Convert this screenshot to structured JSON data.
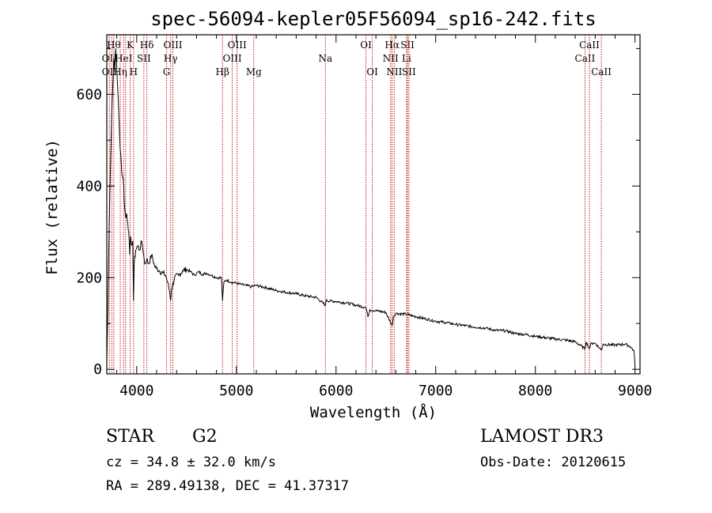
{
  "chart_data": {
    "type": "line",
    "title": "spec-56094-kepler05F56094_sp16-242.fits",
    "xlabel": "Wavelength (Å)",
    "ylabel": "Flux (relative)",
    "xlim": [
      3700,
      9050
    ],
    "ylim": [
      -10,
      730
    ],
    "xticks": [
      4000,
      5000,
      6000,
      7000,
      8000,
      9000
    ],
    "yticks": [
      0,
      200,
      400,
      600
    ],
    "series": [
      {
        "name": "flux",
        "points": [
          [
            3700,
            20
          ],
          [
            3710,
            120
          ],
          [
            3720,
            260
          ],
          [
            3730,
            380
          ],
          [
            3740,
            470
          ],
          [
            3750,
            560
          ],
          [
            3760,
            620
          ],
          [
            3770,
            680
          ],
          [
            3780,
            650
          ],
          [
            3790,
            700
          ],
          [
            3800,
            660
          ],
          [
            3810,
            610
          ],
          [
            3820,
            560
          ],
          [
            3830,
            500
          ],
          [
            3840,
            470
          ],
          [
            3850,
            430
          ],
          [
            3860,
            420
          ],
          [
            3870,
            400
          ],
          [
            3880,
            350
          ],
          [
            3890,
            330
          ],
          [
            3900,
            340
          ],
          [
            3910,
            320
          ],
          [
            3920,
            300
          ],
          [
            3930,
            250
          ],
          [
            3940,
            290
          ],
          [
            3950,
            270
          ],
          [
            3960,
            280
          ],
          [
            3968,
            150
          ],
          [
            3975,
            230
          ],
          [
            3990,
            260
          ],
          [
            4010,
            270
          ],
          [
            4030,
            260
          ],
          [
            4050,
            280
          ],
          [
            4070,
            250
          ],
          [
            4080,
            230
          ],
          [
            4100,
            240
          ],
          [
            4120,
            230
          ],
          [
            4150,
            250
          ],
          [
            4180,
            225
          ],
          [
            4200,
            220
          ],
          [
            4230,
            215
          ],
          [
            4260,
            210
          ],
          [
            4290,
            205
          ],
          [
            4310,
            190
          ],
          [
            4330,
            170
          ],
          [
            4340,
            150
          ],
          [
            4350,
            175
          ],
          [
            4380,
            200
          ],
          [
            4420,
            205
          ],
          [
            4460,
            215
          ],
          [
            4500,
            218
          ],
          [
            4540,
            213
          ],
          [
            4580,
            205
          ],
          [
            4620,
            213
          ],
          [
            4660,
            207
          ],
          [
            4700,
            210
          ],
          [
            4750,
            205
          ],
          [
            4800,
            200
          ],
          [
            4850,
            200
          ],
          [
            4861,
            150
          ],
          [
            4875,
            190
          ],
          [
            4900,
            195
          ],
          [
            4950,
            190
          ],
          [
            5000,
            188
          ],
          [
            5050,
            185
          ],
          [
            5100,
            183
          ],
          [
            5150,
            180
          ],
          [
            5200,
            183
          ],
          [
            5300,
            178
          ],
          [
            5400,
            172
          ],
          [
            5500,
            168
          ],
          [
            5600,
            165
          ],
          [
            5700,
            160
          ],
          [
            5800,
            157
          ],
          [
            5893,
            140
          ],
          [
            5900,
            150
          ],
          [
            6000,
            148
          ],
          [
            6100,
            145
          ],
          [
            6200,
            140
          ],
          [
            6300,
            135
          ],
          [
            6320,
            115
          ],
          [
            6340,
            130
          ],
          [
            6400,
            128
          ],
          [
            6500,
            124
          ],
          [
            6563,
            95
          ],
          [
            6575,
            115
          ],
          [
            6600,
            122
          ],
          [
            6700,
            120
          ],
          [
            6800,
            115
          ],
          [
            6900,
            110
          ],
          [
            7000,
            105
          ],
          [
            7100,
            102
          ],
          [
            7200,
            98
          ],
          [
            7300,
            95
          ],
          [
            7400,
            92
          ],
          [
            7500,
            90
          ],
          [
            7600,
            85
          ],
          [
            7700,
            84
          ],
          [
            7800,
            78
          ],
          [
            7900,
            76
          ],
          [
            8000,
            72
          ],
          [
            8100,
            69
          ],
          [
            8200,
            66
          ],
          [
            8300,
            64
          ],
          [
            8400,
            60
          ],
          [
            8498,
            45
          ],
          [
            8510,
            60
          ],
          [
            8542,
            45
          ],
          [
            8560,
            57
          ],
          [
            8600,
            57
          ],
          [
            8662,
            42
          ],
          [
            8680,
            55
          ],
          [
            8700,
            54
          ],
          [
            8800,
            53
          ],
          [
            8900,
            55
          ],
          [
            8950,
            50
          ],
          [
            8990,
            40
          ],
          [
            9000,
            5
          ]
        ]
      }
    ],
    "lines": [
      {
        "wl": 3726,
        "labels": [
          {
            "text": "OII",
            "row": 2
          },
          {
            "text": "OII",
            "row": 3
          }
        ]
      },
      {
        "wl": 3750,
        "labels": []
      },
      {
        "wl": 3770,
        "labels": [
          {
            "text": "Hθ",
            "row": 1
          }
        ]
      },
      {
        "wl": 3835,
        "labels": [
          {
            "text": "Hη",
            "row": 3
          }
        ]
      },
      {
        "wl": 3869,
        "labels": [
          {
            "text": "HeI",
            "row": 2
          }
        ]
      },
      {
        "wl": 3889,
        "labels": []
      },
      {
        "wl": 3934,
        "labels": [
          {
            "text": "K",
            "row": 1
          }
        ]
      },
      {
        "wl": 3969,
        "labels": [
          {
            "text": "H",
            "row": 3
          }
        ]
      },
      {
        "wl": 4072,
        "labels": [
          {
            "text": "SII",
            "row": 2
          }
        ]
      },
      {
        "wl": 4102,
        "labels": [
          {
            "text": "Hδ",
            "row": 1
          }
        ]
      },
      {
        "wl": 4300,
        "labels": [
          {
            "text": "G",
            "row": 3
          }
        ]
      },
      {
        "wl": 4341,
        "labels": [
          {
            "text": "Hγ",
            "row": 2
          }
        ]
      },
      {
        "wl": 4363,
        "labels": [
          {
            "text": "OIII",
            "row": 1
          }
        ]
      },
      {
        "wl": 4861,
        "labels": [
          {
            "text": "Hβ",
            "row": 3
          }
        ]
      },
      {
        "wl": 4959,
        "labels": [
          {
            "text": "OIII",
            "row": 2
          }
        ]
      },
      {
        "wl": 5007,
        "labels": [
          {
            "text": "OIII",
            "row": 1
          }
        ]
      },
      {
        "wl": 5175,
        "labels": [
          {
            "text": "Mg",
            "row": 3
          }
        ]
      },
      {
        "wl": 5893,
        "labels": [
          {
            "text": "Na",
            "row": 2
          }
        ]
      },
      {
        "wl": 6300,
        "labels": [
          {
            "text": "OI",
            "row": 1
          }
        ]
      },
      {
        "wl": 6364,
        "labels": [
          {
            "text": "OI",
            "row": 3
          }
        ]
      },
      {
        "wl": 6548,
        "labels": [
          {
            "text": "NII",
            "row": 2
          }
        ]
      },
      {
        "wl": 6563,
        "labels": [
          {
            "text": "Hα",
            "row": 1
          }
        ]
      },
      {
        "wl": 6584,
        "labels": [
          {
            "text": "NII",
            "row": 3
          }
        ]
      },
      {
        "wl": 6708,
        "labels": [
          {
            "text": "Li",
            "row": 2
          }
        ]
      },
      {
        "wl": 6717,
        "labels": [
          {
            "text": "SII",
            "row": 1
          }
        ]
      },
      {
        "wl": 6731,
        "labels": [
          {
            "text": "SII",
            "row": 3
          }
        ]
      },
      {
        "wl": 8498,
        "labels": [
          {
            "text": "CaII",
            "row": 2
          }
        ]
      },
      {
        "wl": 8542,
        "labels": [
          {
            "text": "CaII",
            "row": 1
          }
        ]
      },
      {
        "wl": 8662,
        "labels": [
          {
            "text": "CaII",
            "row": 3
          }
        ]
      }
    ],
    "line_color": "#c00000",
    "spectrum_color": "#000000"
  },
  "info": {
    "class": "STAR",
    "subclass": "G2",
    "survey": "LAMOST DR3",
    "cz": "cz = 34.8 ± 32.0 km/s",
    "obsdate": "Obs-Date: 20120615",
    "radec": "RA = 289.49138, DEC =  41.37317"
  }
}
